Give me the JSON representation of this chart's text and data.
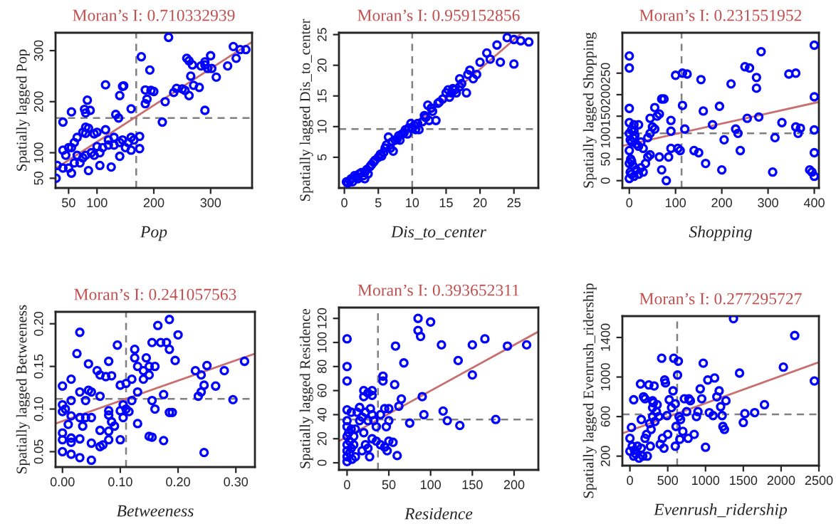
{
  "chart_data": [
    {
      "type": "scatter",
      "title": "Moran’s I: 0.710332939",
      "xlabel": "Pop",
      "ylabel": "Spatially lagged Pop",
      "xlim": [
        27,
        373
      ],
      "ylim": [
        31,
        335
      ],
      "xticks": [
        50,
        100,
        200,
        300
      ],
      "yticks": [
        50,
        100,
        200,
        300
      ],
      "grid": false,
      "series": [
        {
          "marker": "circle",
          "color": "#0000ff",
          "x": [
            226,
            178,
            193,
            115,
            145,
            147,
            340,
            352,
            362,
            300,
            258,
            262,
            268,
            283,
            290,
            295,
            290,
            302,
            330,
            345,
            310,
            265,
            270,
            280,
            255,
            262,
            240,
            250,
            200,
            195,
            185,
            235,
            220,
            188,
            185,
            140,
            133,
            138,
            160,
            290,
            215,
            83,
            78,
            88,
            55,
            80,
            40,
            80,
            85,
            75,
            80,
            95,
            100,
            115,
            65,
            60,
            55,
            50,
            45,
            40,
            30,
            28,
            40,
            55,
            60,
            70,
            75,
            80,
            95,
            85,
            105,
            125,
            140,
            110,
            120,
            130,
            140,
            145,
            155,
            160,
            165,
            175,
            175,
            160,
            150,
            130,
            120,
            100,
            90,
            105,
            65,
            50
          ],
          "values": [
            326,
            288,
            262,
            233,
            230,
            231,
            308,
            302,
            302,
            290,
            285,
            280,
            272,
            270,
            272,
            265,
            278,
            265,
            270,
            285,
            248,
            250,
            232,
            228,
            222,
            212,
            226,
            225,
            220,
            222,
            223,
            218,
            200,
            205,
            196,
            212,
            175,
            168,
            186,
            183,
            160,
            203,
            185,
            183,
            180,
            178,
            160,
            150,
            148,
            140,
            138,
            137,
            140,
            145,
            130,
            120,
            110,
            110,
            95,
            105,
            75,
            50,
            70,
            60,
            80,
            80,
            90,
            95,
            95,
            65,
            75,
            72,
            93,
            110,
            115,
            115,
            120,
            125,
            120,
            130,
            125,
            132,
            108,
            105,
            110,
            130,
            125,
            112,
            100,
            100,
            95,
            70
          ]
        },
        {
          "type": "line",
          "color": "#c87070",
          "x": [
            27,
            373
          ],
          "values": [
            69,
            317
          ]
        }
      ],
      "ref_lines": [
        {
          "axis": "x",
          "value": 169,
          "color": "#808080",
          "line_style": "dashed"
        },
        {
          "axis": "y",
          "value": 168,
          "color": "#808080",
          "line_style": "dashed"
        }
      ]
    },
    {
      "type": "scatter",
      "title": "Moran’s I: 0.959152856",
      "xlabel": "Dis_to_center",
      "ylabel": "Spatially lagged Dis_to_center",
      "xlim": [
        -0.8,
        28.6
      ],
      "ylim": [
        0,
        25.3
      ],
      "xticks": [
        0,
        5,
        10,
        15,
        20,
        25
      ],
      "yticks": [
        5,
        10,
        15,
        20,
        25
      ],
      "grid": false,
      "series": [
        {
          "marker": "circle",
          "color": "#0000ff",
          "x": [
            0.3,
            0.5,
            0.8,
            1,
            1.2,
            1.5,
            1.8,
            2,
            2.2,
            2.5,
            2.8,
            3,
            3,
            3.3,
            3.5,
            3.8,
            4,
            4.3,
            4.5,
            5,
            5.3,
            5.5,
            5.8,
            6,
            6.2,
            6.5,
            6.8,
            7,
            7.2,
            7.5,
            7.8,
            8,
            8.2,
            8.5,
            8.8,
            9,
            9.3,
            9.5,
            9.8,
            10,
            10.3,
            10.5,
            10.8,
            11,
            11.5,
            11.8,
            12,
            12.3,
            12.5,
            12.8,
            13,
            13.5,
            13.8,
            14,
            14.5,
            15,
            15.3,
            15.5,
            15.8,
            16,
            16.3,
            16.5,
            17,
            17,
            17.3,
            18,
            18.2,
            18.5,
            19,
            19.5,
            20,
            21,
            21.5,
            22.5,
            23,
            24,
            25,
            25,
            26,
            27.2
          ],
          "values": [
            1.0,
            0.8,
            1.2,
            1.5,
            1.0,
            2,
            1.8,
            1.5,
            2.3,
            2.5,
            2,
            1.5,
            2.5,
            3,
            2.3,
            3.5,
            3.8,
            4.2,
            4.5,
            5,
            5.5,
            5.2,
            5.8,
            6.5,
            7,
            8.3,
            6.5,
            7.5,
            6,
            7.8,
            8,
            8.5,
            7.8,
            8.8,
            9,
            9.5,
            8.8,
            9.8,
            10.5,
            9.8,
            10.2,
            9.5,
            10.5,
            9.5,
            10.8,
            11.8,
            11.5,
            13.5,
            11,
            13,
            12.5,
            11,
            13.8,
            14,
            14.5,
            15.5,
            16,
            14.8,
            15.5,
            16.2,
            16,
            15.5,
            16.5,
            17.8,
            17,
            15.5,
            18.5,
            19.2,
            17.8,
            18.5,
            20.5,
            22,
            21,
            23.3,
            20.5,
            24.5,
            20.2,
            24.2,
            24,
            23.8
          ]
        },
        {
          "type": "line",
          "color": "#c87070",
          "x": [
            0,
            26.2
          ],
          "values": [
            0.3,
            25.3
          ]
        }
      ],
      "ref_lines": [
        {
          "axis": "x",
          "value": 10,
          "color": "#808080",
          "line_style": "dashed"
        },
        {
          "axis": "y",
          "value": 9.6,
          "color": "#808080",
          "line_style": "dashed"
        }
      ]
    },
    {
      "type": "scatter",
      "title": "Moran’s I: 0.231551952",
      "xlabel": "Shopping",
      "ylabel": "Spatially lagged Shopping",
      "xlim": [
        -15,
        410
      ],
      "ylim": [
        -17,
        344
      ],
      "xticks": [
        0,
        100,
        200,
        300,
        400
      ],
      "yticks": [
        0,
        50,
        100,
        150,
        200,
        250
      ],
      "grid": false,
      "series": [
        {
          "marker": "circle",
          "color": "#0000ff",
          "x": [
            0,
            0,
            0,
            0,
            5,
            10,
            0,
            2,
            5,
            8,
            12,
            15,
            20,
            25,
            30,
            0,
            3,
            5,
            0,
            8,
            2,
            5,
            0,
            10,
            15,
            20,
            25,
            30,
            35,
            40,
            45,
            40,
            45,
            50,
            55,
            60,
            65,
            70,
            75,
            45,
            55,
            20,
            10,
            65,
            70,
            80,
            85,
            90,
            90,
            90,
            100,
            110,
            105,
            115,
            120,
            125,
            115,
            140,
            150,
            155,
            160,
            165,
            180,
            195,
            200,
            205,
            220,
            230,
            235,
            240,
            250,
            255,
            260,
            275,
            275,
            280,
            285,
            310,
            315,
            330,
            345,
            360,
            360,
            365,
            370,
            390,
            395,
            400,
            400,
            400,
            400,
            400
          ],
          "values": [
            290,
            262,
            168,
            135,
            118,
            115,
            110,
            95,
            90,
            100,
            105,
            85,
            80,
            90,
            75,
            70,
            50,
            45,
            40,
            35,
            20,
            15,
            5,
            10,
            25,
            15,
            30,
            20,
            40,
            55,
            60,
            100,
            110,
            125,
            120,
            150,
            155,
            190,
            190,
            145,
            170,
            130,
            130,
            55,
            25,
            0,
            55,
            75,
            115,
            140,
            245,
            70,
            75,
            250,
            120,
            248,
            175,
            70,
            65,
            235,
            162,
            40,
            130,
            173,
            25,
            95,
            225,
            120,
            110,
            70,
            265,
            145,
            262,
            240,
            215,
            148,
            300,
            20,
            100,
            135,
            248,
            250,
            125,
            110,
            122,
            25,
            20,
            10,
            65,
            118,
            195,
            315
          ]
        },
        {
          "type": "line",
          "color": "#c87070",
          "x": [
            -15,
            410
          ],
          "values": [
            81,
            183
          ]
        }
      ],
      "ref_lines": [
        {
          "axis": "x",
          "value": 113,
          "color": "#808080",
          "line_style": "dashed"
        },
        {
          "axis": "y",
          "value": 110,
          "color": "#808080",
          "line_style": "dashed"
        }
      ]
    },
    {
      "type": "scatter",
      "title": "Moran’s I: 0.241057563",
      "xlabel": "Betweeness",
      "ylabel": "Spatially lagged Betweeness",
      "xlim": [
        -0.012,
        0.333
      ],
      "ylim": [
        0.032,
        0.214
      ],
      "xticks": [
        {
          "value": 0,
          "label": "0.00"
        },
        {
          "value": 0.1,
          "label": "0.10"
        },
        {
          "value": 0.2,
          "label": "0.20"
        },
        {
          "value": 0.3,
          "label": "0.30"
        }
      ],
      "yticks": [
        {
          "value": 0.05,
          "label": "0.05"
        },
        {
          "value": 0.1,
          "label": "0.10"
        },
        {
          "value": 0.15,
          "label": "0.15"
        },
        {
          "value": 0.2,
          "label": "0.20"
        }
      ],
      "grid": false,
      "series": [
        {
          "marker": "circle",
          "color": "#0000ff",
          "x": [
            0.0,
            0.0,
            0.0,
            0.0,
            0.0,
            0.0,
            0.005,
            0.01,
            0.015,
            0.015,
            0.015,
            0.015,
            0.015,
            0.015,
            0.025,
            0.03,
            0.03,
            0.03,
            0.03,
            0.03,
            0.035,
            0.04,
            0.04,
            0.045,
            0.045,
            0.05,
            0.05,
            0.05,
            0.05,
            0.06,
            0.065,
            0.065,
            0.065,
            0.065,
            0.07,
            0.075,
            0.08,
            0.08,
            0.08,
            0.08,
            0.08,
            0.085,
            0.085,
            0.09,
            0.095,
            0.1,
            0.1,
            0.1,
            0.105,
            0.105,
            0.11,
            0.11,
            0.115,
            0.12,
            0.12,
            0.125,
            0.125,
            0.13,
            0.13,
            0.13,
            0.14,
            0.14,
            0.145,
            0.15,
            0.15,
            0.15,
            0.155,
            0.155,
            0.155,
            0.16,
            0.16,
            0.165,
            0.17,
            0.175,
            0.175,
            0.18,
            0.185,
            0.185,
            0.185,
            0.19,
            0.195,
            0.2,
            0.23,
            0.235,
            0.24,
            0.24,
            0.245,
            0.245,
            0.25,
            0.265,
            0.28,
            0.295,
            0.315
          ],
          "values": [
            0.127,
            0.105,
            0.097,
            0.072,
            0.064,
            0.05,
            0.1,
            0.082,
            0.092,
            0.11,
            0.135,
            0.066,
            0.061,
            0.047,
            0.165,
            0.19,
            0.12,
            0.09,
            0.065,
            0.043,
            0.08,
            0.11,
            0.09,
            0.122,
            0.153,
            0.12,
            0.09,
            0.06,
            0.04,
            0.145,
            0.14,
            0.115,
            0.075,
            0.056,
            0.058,
            0.138,
            0.156,
            0.098,
            0.093,
            0.074,
            0.064,
            0.085,
            0.139,
            0.08,
            0.175,
            0.128,
            0.098,
            0.064,
            0.105,
            0.09,
            0.13,
            0.1,
            0.097,
            0.11,
            0.135,
            0.17,
            0.16,
            0.15,
            0.12,
            0.083,
            0.145,
            0.135,
            0.16,
            0.15,
            0.14,
            0.068,
            0.067,
            0.178,
            0.11,
            0.1,
            0.15,
            0.198,
            0.178,
            0.117,
            0.063,
            0.178,
            0.205,
            0.17,
            0.096,
            0.096,
            0.157,
            0.187,
            0.145,
            0.115,
            0.12,
            0.14,
            0.128,
            0.049,
            0.151,
            0.127,
            0.145,
            0.111,
            0.156
          ]
        },
        {
          "type": "line",
          "color": "#c87070",
          "x": [
            -0.012,
            0.333
          ],
          "values": [
            0.083,
            0.165
          ]
        }
      ],
      "ref_lines": [
        {
          "axis": "x",
          "value": 0.11,
          "color": "#808080",
          "line_style": "dashed"
        },
        {
          "axis": "y",
          "value": 0.112,
          "color": "#808080",
          "line_style": "dashed"
        }
      ]
    },
    {
      "type": "scatter",
      "title": "Moran’s I: 0.393652311",
      "xlabel": "Residence",
      "ylabel": "Spatially lagged Residence",
      "xlim": [
        -9.7,
        229
      ],
      "ylim": [
        -5.9,
        129
      ],
      "xticks": [
        0,
        50,
        100,
        150,
        200
      ],
      "yticks": [
        0,
        20,
        40,
        60,
        80,
        100,
        120
      ],
      "grid": false,
      "series": [
        {
          "marker": "circle",
          "color": "#0000ff",
          "x": [
            0,
            0,
            0,
            0,
            0,
            0,
            0,
            0,
            0,
            0,
            0,
            2,
            3,
            3,
            5,
            5,
            5,
            6,
            8,
            8,
            10,
            10,
            12,
            15,
            15,
            18,
            18,
            20,
            20,
            20,
            22,
            22,
            25,
            25,
            25,
            27,
            28,
            30,
            30,
            30,
            30,
            32,
            35,
            35,
            40,
            40,
            43,
            43,
            45,
            45,
            47,
            48,
            50,
            50,
            50,
            55,
            57,
            58,
            60,
            62,
            65,
            68,
            75,
            85,
            85,
            88,
            90,
            92,
            100,
            113,
            115,
            120,
            133,
            135,
            150,
            150,
            165,
            178,
            192,
            215
          ],
          "values": [
            103,
            80,
            68,
            44,
            35,
            30,
            22,
            15,
            10,
            5,
            1,
            25,
            18,
            8,
            42,
            28,
            12,
            3,
            22,
            15,
            28,
            5,
            42,
            46,
            35,
            38,
            10,
            60,
            55,
            25,
            42,
            15,
            58,
            35,
            12,
            5,
            45,
            60,
            56,
            40,
            20,
            35,
            30,
            18,
            40,
            15,
            72,
            68,
            45,
            13,
            30,
            10,
            45,
            35,
            18,
            17,
            65,
            97,
            6,
            47,
            53,
            83,
            33,
            120,
            110,
            105,
            55,
            40,
            117,
            98,
            43,
            35,
            85,
            31,
            73,
            98,
            103,
            36,
            97,
            98
          ]
        },
        {
          "type": "line",
          "color": "#c87070",
          "x": [
            -9.7,
            229
          ],
          "values": [
            18,
            109
          ]
        }
      ],
      "ref_lines": [
        {
          "axis": "x",
          "value": 37,
          "color": "#808080",
          "line_style": "dashed"
        },
        {
          "axis": "y",
          "value": 36,
          "color": "#808080",
          "line_style": "dashed"
        }
      ]
    },
    {
      "type": "scatter",
      "title": "Moran’s I: 0.277295727",
      "xlabel": "Evenrush_ridership",
      "ylabel": "Spatially lagged Evenrush_ridership",
      "xlim": [
        -100,
        2500
      ],
      "ylim": [
        104,
        1616
      ],
      "xticks": [
        0,
        500,
        1000,
        1500,
        2000,
        2500
      ],
      "yticks": [
        200,
        600,
        1000,
        1400
      ],
      "grid": false,
      "series": [
        {
          "marker": "circle",
          "color": "#0000ff",
          "x": [
            0,
            0,
            20,
            30,
            50,
            50,
            60,
            80,
            100,
            120,
            140,
            150,
            150,
            170,
            180,
            200,
            200,
            220,
            230,
            250,
            260,
            270,
            280,
            300,
            300,
            300,
            310,
            320,
            330,
            350,
            360,
            380,
            400,
            420,
            430,
            450,
            460,
            470,
            490,
            500,
            520,
            550,
            570,
            580,
            600,
            600,
            610,
            630,
            640,
            650,
            660,
            670,
            700,
            720,
            750,
            770,
            780,
            800,
            850,
            880,
            900,
            930,
            950,
            970,
            1000,
            1030,
            1050,
            1100,
            1120,
            1150,
            1180,
            1200,
            1220,
            1230,
            1250,
            1270,
            1370,
            1450,
            1500,
            1520,
            1650,
            1780,
            2030,
            2180,
            2440
          ],
          "values": [
            380,
            250,
            490,
            300,
            200,
            770,
            260,
            220,
            300,
            180,
            930,
            570,
            280,
            200,
            800,
            780,
            380,
            420,
            200,
            920,
            530,
            300,
            470,
            760,
            690,
            600,
            740,
            910,
            550,
            650,
            720,
            600,
            320,
            1190,
            380,
            280,
            970,
            940,
            610,
            420,
            770,
            690,
            860,
            1190,
            730,
            300,
            500,
            1020,
            1160,
            600,
            370,
            570,
            450,
            780,
            650,
            380,
            780,
            760,
            420,
            600,
            650,
            880,
            780,
            1140,
            290,
            970,
            640,
            610,
            990,
            800,
            860,
            700,
            610,
            500,
            470,
            760,
            1590,
            1040,
            540,
            630,
            640,
            720,
            1100,
            1420,
            960
          ]
        },
        {
          "type": "line",
          "color": "#c87070",
          "x": [
            -100,
            2500
          ],
          "values": [
            430,
            1150
          ]
        }
      ],
      "ref_lines": [
        {
          "axis": "x",
          "value": 625,
          "color": "#808080",
          "line_style": "dashed"
        },
        {
          "axis": "y",
          "value": 622,
          "color": "#808080",
          "line_style": "dashed"
        }
      ]
    }
  ]
}
